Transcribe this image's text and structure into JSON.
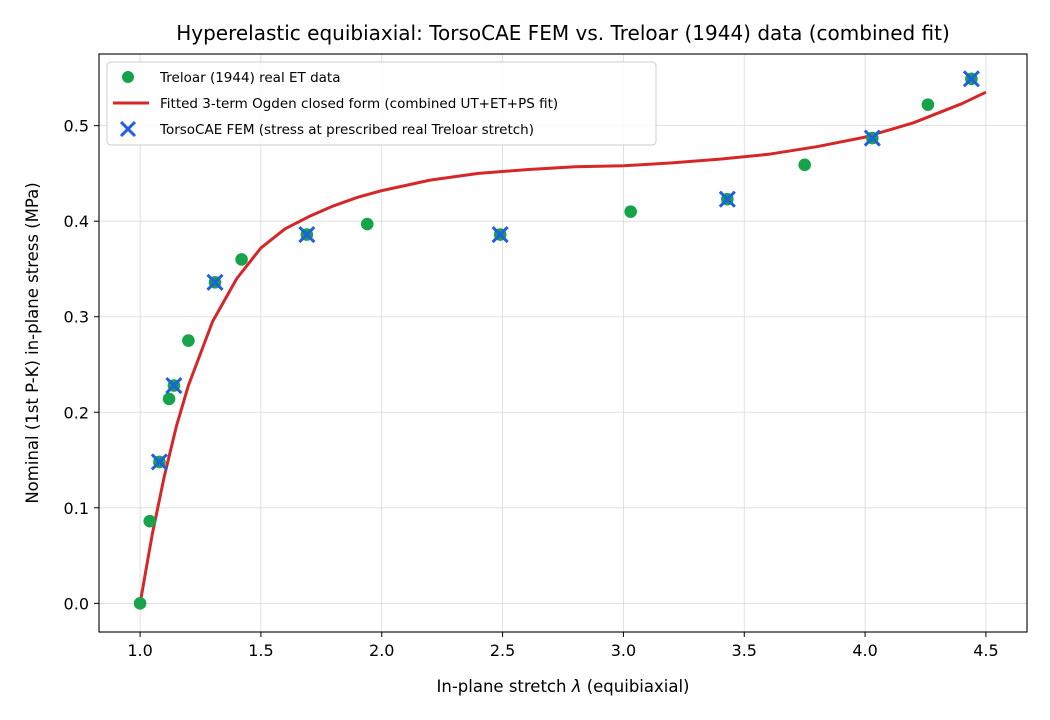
{
  "chart_data": {
    "type": "scatter",
    "title": "Hyperelastic equibiaxial: TorsoCAE FEM vs. Treloar (1944) data (combined fit)",
    "xlabel_prefix": "In-plane stretch ",
    "xlabel_symbol": "λ",
    "xlabel_suffix": " (equibiaxial)",
    "ylabel": "Nominal (1st P-K) in-plane stress (MPa)",
    "xlim": [
      0.83,
      4.67
    ],
    "ylim": [
      -0.03,
      0.575
    ],
    "xticks": [
      1.0,
      1.5,
      2.0,
      2.5,
      3.0,
      3.5,
      4.0,
      4.5
    ],
    "xtick_labels": [
      "1.0",
      "1.5",
      "2.0",
      "2.5",
      "3.0",
      "3.5",
      "4.0",
      "4.5"
    ],
    "yticks": [
      0.0,
      0.1,
      0.2,
      0.3,
      0.4,
      0.5
    ],
    "ytick_labels": [
      "0.0",
      "0.1",
      "0.2",
      "0.3",
      "0.4",
      "0.5"
    ],
    "grid": true,
    "legend_position": "upper-left",
    "series": [
      {
        "name": "Treloar (1944) real ET data",
        "kind": "scatter",
        "color": "#16a34a",
        "points": [
          [
            1.0,
            0.0
          ],
          [
            1.04,
            0.086
          ],
          [
            1.08,
            0.148
          ],
          [
            1.12,
            0.214
          ],
          [
            1.14,
            0.228
          ],
          [
            1.2,
            0.275
          ],
          [
            1.31,
            0.336
          ],
          [
            1.42,
            0.36
          ],
          [
            1.69,
            0.386
          ],
          [
            1.94,
            0.397
          ],
          [
            2.49,
            0.386
          ],
          [
            3.03,
            0.41
          ],
          [
            3.43,
            0.423
          ],
          [
            3.75,
            0.459
          ],
          [
            4.03,
            0.487
          ],
          [
            4.26,
            0.522
          ],
          [
            4.44,
            0.549
          ]
        ]
      },
      {
        "name": "Fitted 3-term Ogden closed form (combined UT+ET+PS fit)",
        "kind": "line",
        "color": "#d62728",
        "points": [
          [
            1.0,
            0.0
          ],
          [
            1.05,
            0.072
          ],
          [
            1.1,
            0.133
          ],
          [
            1.15,
            0.185
          ],
          [
            1.2,
            0.228
          ],
          [
            1.3,
            0.295
          ],
          [
            1.4,
            0.34
          ],
          [
            1.5,
            0.372
          ],
          [
            1.6,
            0.392
          ],
          [
            1.7,
            0.405
          ],
          [
            1.8,
            0.416
          ],
          [
            1.9,
            0.425
          ],
          [
            2.0,
            0.432
          ],
          [
            2.2,
            0.443
          ],
          [
            2.4,
            0.45
          ],
          [
            2.6,
            0.454
          ],
          [
            2.8,
            0.457
          ],
          [
            3.0,
            0.458
          ],
          [
            3.2,
            0.461
          ],
          [
            3.4,
            0.465
          ],
          [
            3.6,
            0.47
          ],
          [
            3.8,
            0.478
          ],
          [
            4.0,
            0.488
          ],
          [
            4.2,
            0.503
          ],
          [
            4.4,
            0.523
          ],
          [
            4.5,
            0.535
          ]
        ]
      },
      {
        "name": "TorsoCAE FEM (stress at prescribed real Treloar stretch)",
        "kind": "x-marker",
        "color": "#1f5fe0",
        "points": [
          [
            1.08,
            0.148
          ],
          [
            1.14,
            0.228
          ],
          [
            1.31,
            0.336
          ],
          [
            1.69,
            0.386
          ],
          [
            2.49,
            0.386
          ],
          [
            3.43,
            0.423
          ],
          [
            4.03,
            0.487
          ],
          [
            4.44,
            0.549
          ]
        ]
      }
    ]
  }
}
